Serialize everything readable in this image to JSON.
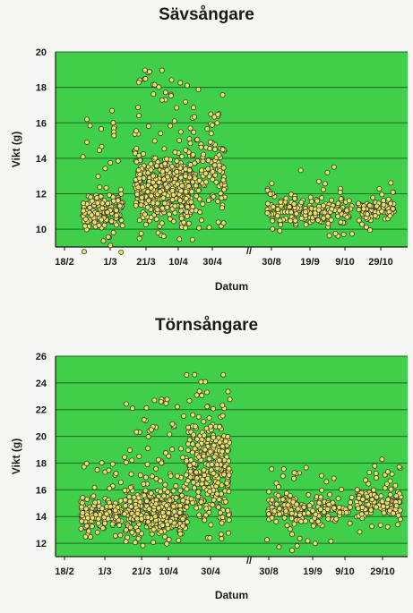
{
  "chart_data": [
    {
      "type": "scatter",
      "title": "Sävsångare",
      "xlabel": "Datum",
      "ylabel": "Vikt (g)",
      "x_tick_labels": [
        "18/2",
        "1/3",
        "21/3",
        "10/4",
        "30/4",
        "30/8",
        "19/9",
        "9/10",
        "29/10"
      ],
      "y_ticks": [
        10,
        12,
        14,
        16,
        18,
        20
      ],
      "ylim": [
        9,
        20
      ],
      "axis_break_marker": "//",
      "grid": "horizontal",
      "point_color": "#e8e070",
      "plot_bg": "#3fcf4a",
      "clusters": [
        {
          "period": "1/3",
          "y_range": [
            8.6,
            17.6
          ],
          "dense_range": [
            9.8,
            12.2
          ],
          "n": 170
        },
        {
          "period": "21/3 - 10/4",
          "y_range": [
            9.3,
            19.0
          ],
          "dense_range": [
            10.0,
            14.5
          ],
          "n": 460
        },
        {
          "period": "30/4",
          "y_range": [
            9.2,
            18.0
          ],
          "dense_range": [
            10.0,
            16.5
          ],
          "n": 150
        },
        {
          "period": "30/8 - 9/10",
          "y_range": [
            9.6,
            13.6
          ],
          "dense_range": [
            10.0,
            12.0
          ],
          "n": 210
        },
        {
          "period": "29/10",
          "y_range": [
            9.8,
            12.8
          ],
          "dense_range": [
            10.2,
            12.0
          ],
          "n": 90
        }
      ]
    },
    {
      "type": "scatter",
      "title": "Törnsångare",
      "xlabel": "Datum",
      "ylabel": "Vikt (g)",
      "x_tick_labels": [
        "18/2",
        "1/3",
        "21/3",
        "10/4",
        "30/4",
        "30/8",
        "19/9",
        "9/10",
        "29/10"
      ],
      "y_ticks": [
        12,
        14,
        16,
        18,
        20,
        22,
        24,
        26
      ],
      "ylim": [
        11,
        26
      ],
      "axis_break_marker": "//",
      "grid": "horizontal",
      "point_color": "#e8e070",
      "plot_bg": "#3fcf4a",
      "clusters": [
        {
          "period": "1/3",
          "y_range": [
            12.4,
            18.2
          ],
          "dense_range": [
            13.0,
            15.5
          ],
          "n": 180
        },
        {
          "period": "21/3 - 10/4",
          "y_range": [
            11.8,
            22.8
          ],
          "dense_range": [
            12.2,
            16.5
          ],
          "n": 430
        },
        {
          "period": "30/4",
          "y_range": [
            12.3,
            24.9
          ],
          "dense_range": [
            13.0,
            22.5
          ],
          "n": 330
        },
        {
          "period": "30/8 - 9/10",
          "y_range": [
            11.4,
            17.8
          ],
          "dense_range": [
            13.2,
            16.0
          ],
          "n": 200
        },
        {
          "period": "29/10",
          "y_range": [
            12.6,
            18.3
          ],
          "dense_range": [
            13.5,
            16.5
          ],
          "n": 140
        }
      ]
    }
  ]
}
